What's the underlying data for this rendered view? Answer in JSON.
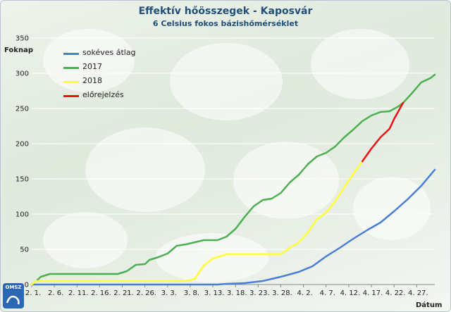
{
  "logo_text": "OMSZ",
  "chart_data": {
    "type": "line",
    "title": "Effektív hőösszegek - Kaposvár",
    "subtitle": "6 Celsius fokos bázishőmérséklet",
    "ylabel": "Foknap",
    "xlabel": "Dátum",
    "ylim": [
      0,
      350
    ],
    "yticks": [
      0,
      50,
      100,
      150,
      200,
      250,
      300,
      350
    ],
    "xlim": [
      "2. 1.",
      "5. 1."
    ],
    "xticks": [
      "2. 1.",
      "2. 6.",
      "2. 11.",
      "2. 16.",
      "2. 21.",
      "2. 26.",
      "3. 3.",
      "3. 8.",
      "3. 13.",
      "3. 18.",
      "3. 23.",
      "3. 28.",
      "4. 2.",
      "4. 7.",
      "4. 12.",
      "4. 17.",
      "4. 22.",
      "4. 27."
    ],
    "grid": "horizontal",
    "legend_position": "top-left",
    "series": [
      {
        "name": "sokéves átlag",
        "color": "#4a7ed6",
        "points": [
          [
            "2. 1.",
            0
          ],
          [
            "3. 14.",
            0
          ],
          [
            "3. 16.",
            1
          ],
          [
            "3. 20.",
            2
          ],
          [
            "3. 24.",
            5
          ],
          [
            "3. 28.",
            11
          ],
          [
            "4. 1.",
            18
          ],
          [
            "4. 4.",
            26
          ],
          [
            "4. 7.",
            40
          ],
          [
            "4. 10.",
            52
          ],
          [
            "4. 13.",
            65
          ],
          [
            "4. 16.",
            77
          ],
          [
            "4. 19.",
            88
          ],
          [
            "4. 22.",
            104
          ],
          [
            "4. 25.",
            121
          ],
          [
            "4. 28.",
            140
          ],
          [
            "5. 1.",
            163
          ]
        ]
      },
      {
        "name": "2017",
        "color": "#4caf50",
        "points": [
          [
            "2. 1.",
            0
          ],
          [
            "2. 2.",
            5
          ],
          [
            "2. 3.",
            11
          ],
          [
            "2. 5.",
            15
          ],
          [
            "2. 20.",
            15
          ],
          [
            "2. 22.",
            19
          ],
          [
            "2. 24.",
            28
          ],
          [
            "2. 26.",
            29
          ],
          [
            "2. 27.",
            35
          ],
          [
            "3. 1.",
            39
          ],
          [
            "3. 3.",
            44
          ],
          [
            "3. 5.",
            55
          ],
          [
            "3. 7.",
            57
          ],
          [
            "3. 9.",
            60
          ],
          [
            "3. 11.",
            63
          ],
          [
            "3. 14.",
            63
          ],
          [
            "3. 16.",
            68
          ],
          [
            "3. 18.",
            79
          ],
          [
            "3. 20.",
            96
          ],
          [
            "3. 22.",
            111
          ],
          [
            "3. 24.",
            120
          ],
          [
            "3. 26.",
            122
          ],
          [
            "3. 28.",
            130
          ],
          [
            "3. 30.",
            145
          ],
          [
            "4. 1.",
            156
          ],
          [
            "4. 3.",
            171
          ],
          [
            "4. 5.",
            182
          ],
          [
            "4. 7.",
            187
          ],
          [
            "4. 9.",
            196
          ],
          [
            "4. 11.",
            209
          ],
          [
            "4. 13.",
            220
          ],
          [
            "4. 15.",
            232
          ],
          [
            "4. 17.",
            240
          ],
          [
            "4. 19.",
            245
          ],
          [
            "4. 21.",
            246
          ],
          [
            "4. 23.",
            253
          ],
          [
            "4. 24.",
            258
          ],
          [
            "4. 26.",
            272
          ],
          [
            "4. 28.",
            287
          ],
          [
            "4. 30.",
            293
          ],
          [
            "5. 1.",
            298
          ]
        ]
      },
      {
        "name": "2018",
        "color": "#ffff33",
        "points": [
          [
            "2. 1.",
            0
          ],
          [
            "2. 2.",
            5
          ],
          [
            "3. 7.",
            5
          ],
          [
            "3. 9.",
            8
          ],
          [
            "3. 11.",
            27
          ],
          [
            "3. 13.",
            37
          ],
          [
            "3. 16.",
            43
          ],
          [
            "3. 18.",
            43
          ],
          [
            "3. 28.",
            43
          ],
          [
            "3. 30.",
            52
          ],
          [
            "4. 1.",
            60
          ],
          [
            "4. 3.",
            74
          ],
          [
            "4. 5.",
            93
          ],
          [
            "4. 7.",
            102
          ],
          [
            "4. 9.",
            118
          ],
          [
            "4. 11.",
            138
          ],
          [
            "4. 13.",
            157
          ],
          [
            "4. 15.",
            175
          ]
        ]
      },
      {
        "name": "előrejelzés",
        "color": "#ee1111",
        "points": [
          [
            "4. 15.",
            175
          ],
          [
            "4. 17.",
            193
          ],
          [
            "4. 19.",
            209
          ],
          [
            "4. 21.",
            221
          ],
          [
            "4. 22.",
            235
          ],
          [
            "4. 24.",
            258
          ]
        ]
      }
    ]
  }
}
